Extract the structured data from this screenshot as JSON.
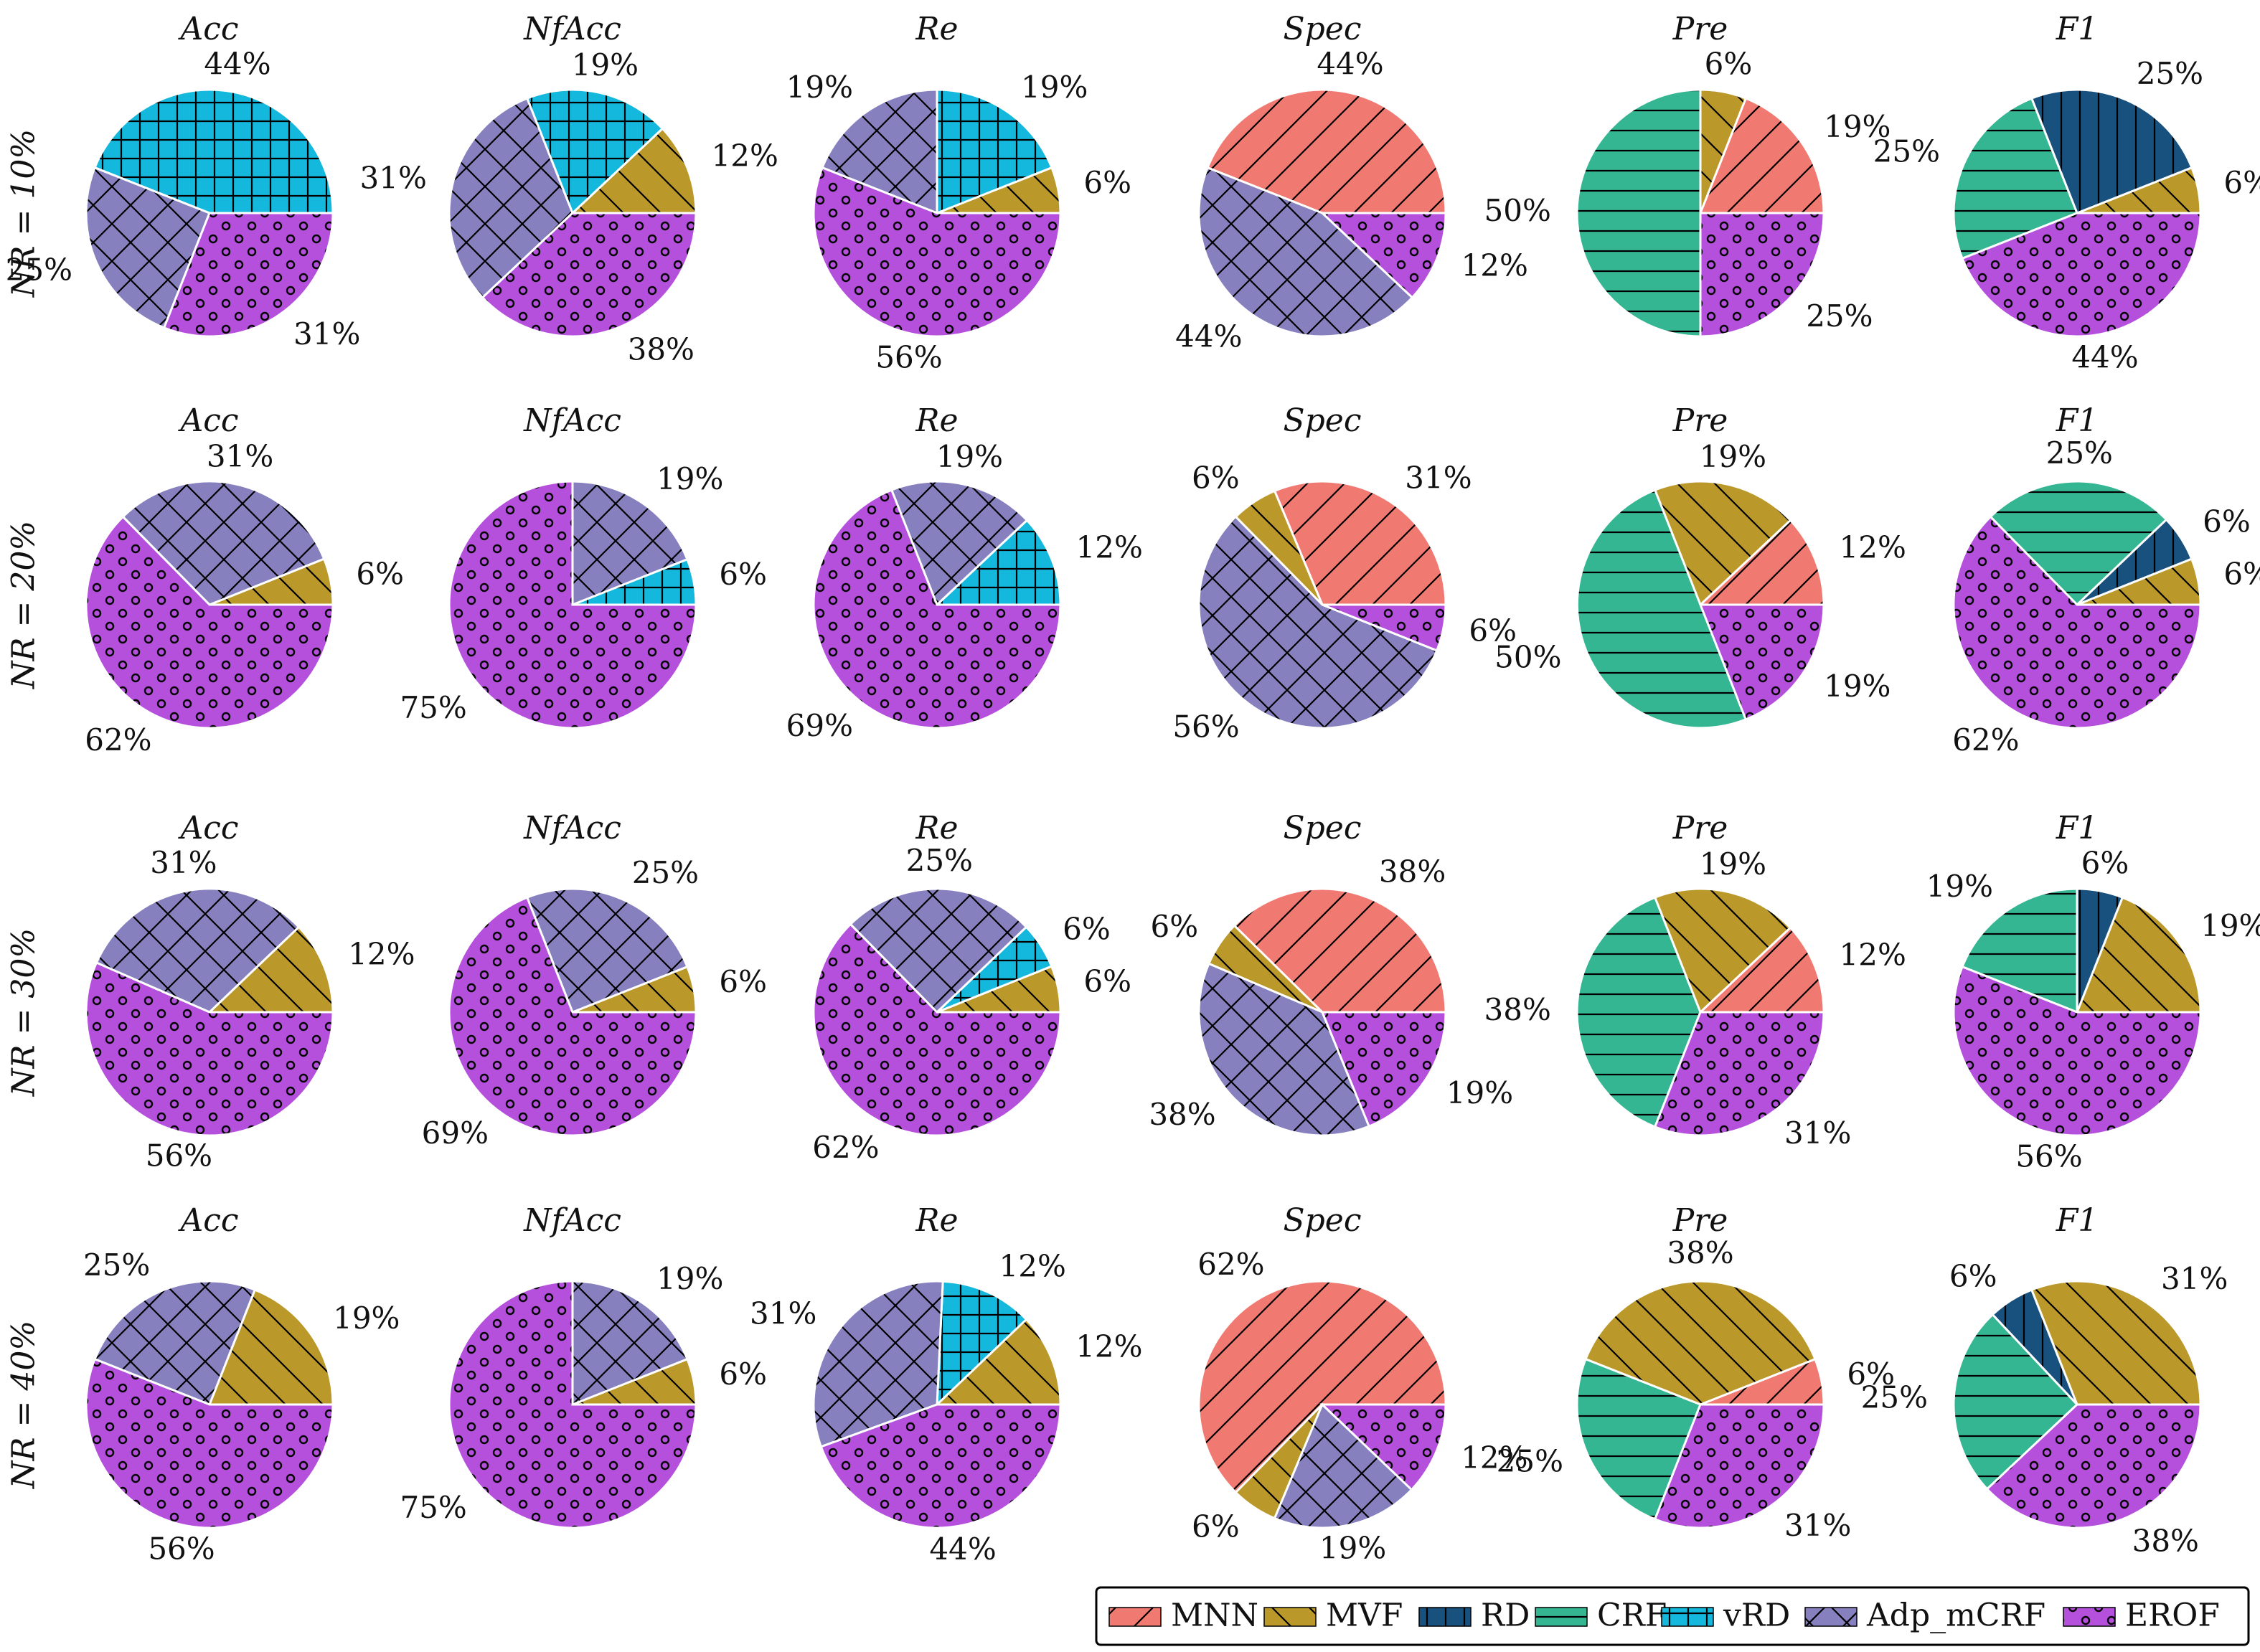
{
  "chart_data": {
    "type": "pie",
    "methods": [
      {
        "key": "MNN",
        "label": "MNN",
        "color": "#F07A72",
        "hatch": "diag"
      },
      {
        "key": "MVF",
        "label": "MVF",
        "color": "#BB982A",
        "hatch": "back"
      },
      {
        "key": "RD",
        "label": "RD",
        "color": "#18507E",
        "hatch": "vert"
      },
      {
        "key": "CRF",
        "label": "CRF",
        "color": "#35B692",
        "hatch": "horiz"
      },
      {
        "key": "vRD",
        "label": "vRD",
        "color": "#15B8DD",
        "hatch": "grid"
      },
      {
        "key": "Adp_mCRF",
        "label": "Adp_mCRF",
        "color": "#8680BF",
        "hatch": "xgrid"
      },
      {
        "key": "EROF",
        "label": "EROF",
        "color": "#B550DC",
        "hatch": "dots"
      }
    ],
    "metrics": [
      "Acc",
      "NfAcc",
      "Re",
      "Spec",
      "Pre",
      "F1"
    ],
    "rows": [
      {
        "label": "NR = 10%",
        "pies": [
          {
            "title": "Acc",
            "slices": [
              {
                "m": "vRD",
                "v": 44
              },
              {
                "m": "Adp_mCRF",
                "v": 25
              },
              {
                "m": "EROF",
                "v": 31
              }
            ]
          },
          {
            "title": "NfAcc",
            "slices": [
              {
                "m": "MVF",
                "v": 12
              },
              {
                "m": "vRD",
                "v": 19
              },
              {
                "m": "Adp_mCRF",
                "v": 31
              },
              {
                "m": "EROF",
                "v": 38
              }
            ]
          },
          {
            "title": "Re",
            "slices": [
              {
                "m": "MVF",
                "v": 6
              },
              {
                "m": "vRD",
                "v": 19
              },
              {
                "m": "Adp_mCRF",
                "v": 19
              },
              {
                "m": "EROF",
                "v": 56
              }
            ]
          },
          {
            "title": "Spec",
            "slices": [
              {
                "m": "MNN",
                "v": 44
              },
              {
                "m": "Adp_mCRF",
                "v": 44
              },
              {
                "m": "EROF",
                "v": 12
              }
            ]
          },
          {
            "title": "Pre",
            "slices": [
              {
                "m": "MNN",
                "v": 19
              },
              {
                "m": "MVF",
                "v": 6
              },
              {
                "m": "CRF",
                "v": 50
              },
              {
                "m": "EROF",
                "v": 25
              }
            ]
          },
          {
            "title": "F1",
            "slices": [
              {
                "m": "MVF",
                "v": 6
              },
              {
                "m": "RD",
                "v": 25
              },
              {
                "m": "CRF",
                "v": 25
              },
              {
                "m": "EROF",
                "v": 44
              }
            ]
          }
        ]
      },
      {
        "label": "NR = 20%",
        "pies": [
          {
            "title": "Acc",
            "slices": [
              {
                "m": "MVF",
                "v": 6
              },
              {
                "m": "Adp_mCRF",
                "v": 31
              },
              {
                "m": "EROF",
                "v": 62
              }
            ]
          },
          {
            "title": "NfAcc",
            "slices": [
              {
                "m": "vRD",
                "v": 6
              },
              {
                "m": "Adp_mCRF",
                "v": 19
              },
              {
                "m": "EROF",
                "v": 75
              }
            ]
          },
          {
            "title": "Re",
            "slices": [
              {
                "m": "vRD",
                "v": 12
              },
              {
                "m": "Adp_mCRF",
                "v": 19
              },
              {
                "m": "EROF",
                "v": 69
              }
            ]
          },
          {
            "title": "Spec",
            "slices": [
              {
                "m": "MNN",
                "v": 31
              },
              {
                "m": "MVF",
                "v": 6
              },
              {
                "m": "Adp_mCRF",
                "v": 56
              },
              {
                "m": "EROF",
                "v": 6
              }
            ]
          },
          {
            "title": "Pre",
            "slices": [
              {
                "m": "MNN",
                "v": 12
              },
              {
                "m": "MVF",
                "v": 19
              },
              {
                "m": "CRF",
                "v": 50
              },
              {
                "m": "EROF",
                "v": 19
              }
            ]
          },
          {
            "title": "F1",
            "slices": [
              {
                "m": "MVF",
                "v": 6
              },
              {
                "m": "RD",
                "v": 6
              },
              {
                "m": "CRF",
                "v": 25
              },
              {
                "m": "EROF",
                "v": 62
              }
            ]
          }
        ]
      },
      {
        "label": "NR = 30%",
        "pies": [
          {
            "title": "Acc",
            "slices": [
              {
                "m": "MVF",
                "v": 12
              },
              {
                "m": "Adp_mCRF",
                "v": 31
              },
              {
                "m": "EROF",
                "v": 56
              }
            ]
          },
          {
            "title": "NfAcc",
            "slices": [
              {
                "m": "MVF",
                "v": 6
              },
              {
                "m": "Adp_mCRF",
                "v": 25
              },
              {
                "m": "EROF",
                "v": 69
              }
            ]
          },
          {
            "title": "Re",
            "slices": [
              {
                "m": "MVF",
                "v": 6
              },
              {
                "m": "vRD",
                "v": 6
              },
              {
                "m": "Adp_mCRF",
                "v": 25
              },
              {
                "m": "EROF",
                "v": 62
              }
            ]
          },
          {
            "title": "Spec",
            "slices": [
              {
                "m": "MNN",
                "v": 38
              },
              {
                "m": "MVF",
                "v": 6
              },
              {
                "m": "Adp_mCRF",
                "v": 38
              },
              {
                "m": "EROF",
                "v": 19
              }
            ]
          },
          {
            "title": "Pre",
            "slices": [
              {
                "m": "MNN",
                "v": 12
              },
              {
                "m": "MVF",
                "v": 19
              },
              {
                "m": "CRF",
                "v": 38
              },
              {
                "m": "EROF",
                "v": 31
              }
            ]
          },
          {
            "title": "F1",
            "slices": [
              {
                "m": "MVF",
                "v": 19
              },
              {
                "m": "RD",
                "v": 6
              },
              {
                "m": "CRF",
                "v": 19
              },
              {
                "m": "EROF",
                "v": 56
              }
            ]
          }
        ]
      },
      {
        "label": "NR = 40%",
        "pies": [
          {
            "title": "Acc",
            "slices": [
              {
                "m": "MVF",
                "v": 19
              },
              {
                "m": "Adp_mCRF",
                "v": 25
              },
              {
                "m": "EROF",
                "v": 56
              }
            ]
          },
          {
            "title": "NfAcc",
            "slices": [
              {
                "m": "MVF",
                "v": 6
              },
              {
                "m": "Adp_mCRF",
                "v": 19
              },
              {
                "m": "EROF",
                "v": 75
              }
            ]
          },
          {
            "title": "Re",
            "slices": [
              {
                "m": "MVF",
                "v": 12
              },
              {
                "m": "vRD",
                "v": 12
              },
              {
                "m": "Adp_mCRF",
                "v": 31
              },
              {
                "m": "EROF",
                "v": 44
              }
            ]
          },
          {
            "title": "Spec",
            "slices": [
              {
                "m": "MNN",
                "v": 62
              },
              {
                "m": "MVF",
                "v": 6
              },
              {
                "m": "Adp_mCRF",
                "v": 19
              },
              {
                "m": "EROF",
                "v": 12
              }
            ]
          },
          {
            "title": "Pre",
            "slices": [
              {
                "m": "MNN",
                "v": 6
              },
              {
                "m": "MVF",
                "v": 38
              },
              {
                "m": "CRF",
                "v": 25
              },
              {
                "m": "EROF",
                "v": 31
              }
            ]
          },
          {
            "title": "F1",
            "slices": [
              {
                "m": "MVF",
                "v": 31
              },
              {
                "m": "RD",
                "v": 6
              },
              {
                "m": "CRF",
                "v": 25
              },
              {
                "m": "EROF",
                "v": 38
              }
            ]
          }
        ]
      }
    ],
    "legend": {
      "position": "bottom-right",
      "entries": [
        "MNN",
        "MVF",
        "RD",
        "CRF",
        "vRD",
        "Adp_mCRF",
        "EROF"
      ]
    }
  }
}
